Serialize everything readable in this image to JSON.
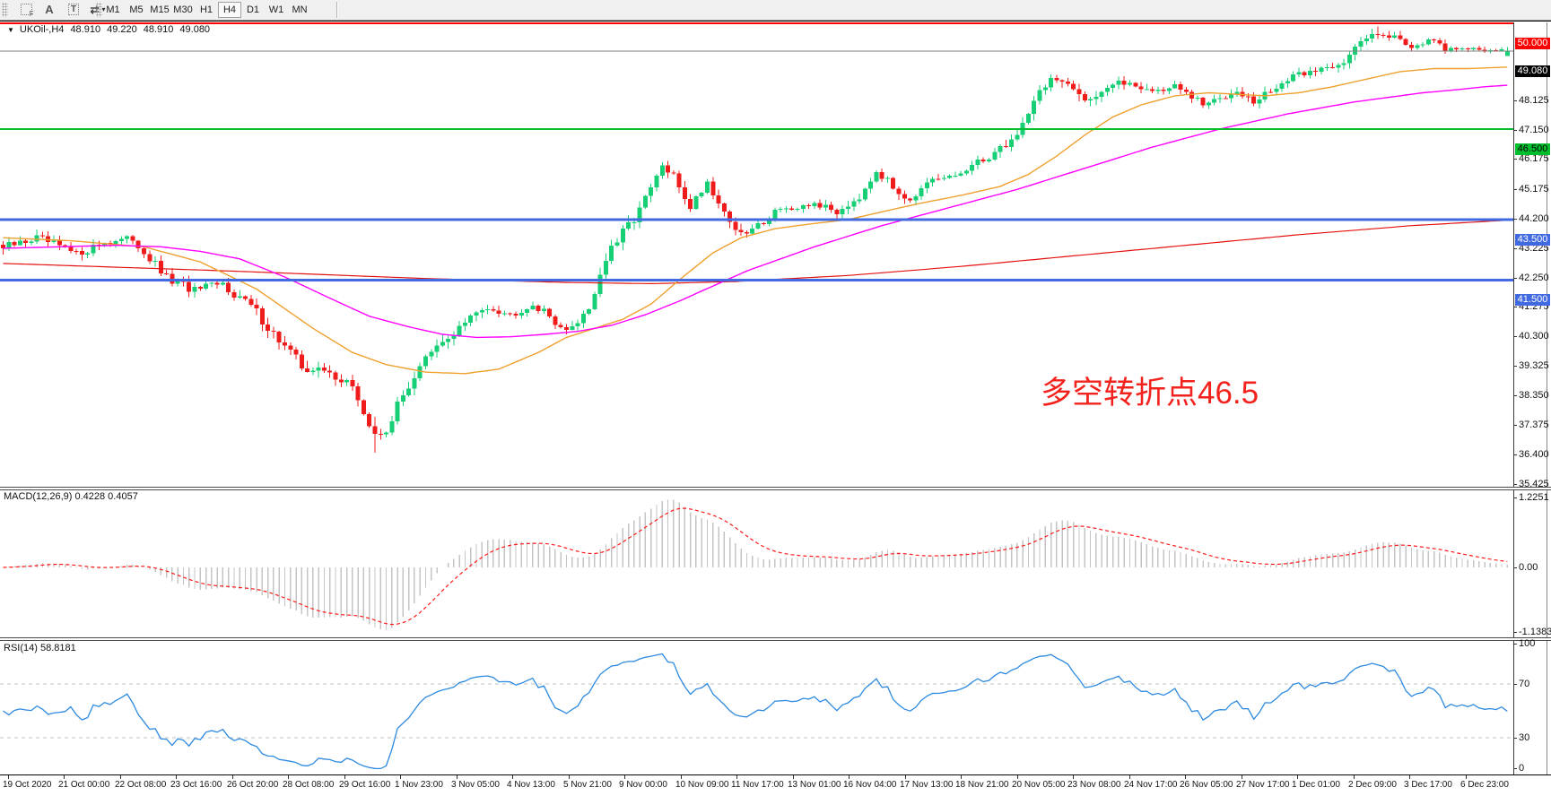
{
  "toolbar": {
    "timeframes": [
      "M1",
      "M5",
      "M15",
      "M30",
      "H1",
      "H4",
      "D1",
      "W1",
      "MN"
    ],
    "active_timeframe": "H4",
    "icon_glyphs": {
      "f": "F",
      "a": "A",
      "t": "T",
      "arrows": "⇄",
      "caret": "▾"
    }
  },
  "chart": {
    "collapse_caret": "▼",
    "title": "UKOil-,H4",
    "ohlc": {
      "open": "48.910",
      "high": "49.220",
      "low": "48.910",
      "close": "49.080"
    },
    "annotation": {
      "text": "多空转折点46.5",
      "color": "#f3221d"
    },
    "price_axis_ticks": [
      "48.125",
      "47.150",
      "46.175",
      "45.175",
      "44.200",
      "43.225",
      "42.250",
      "41.275",
      "40.300",
      "39.325",
      "38.350",
      "37.375",
      "36.400",
      "35.425"
    ],
    "hlines": [
      {
        "label": "50.000",
        "price": 50.0,
        "line_color": "#ff0000",
        "label_bg": "#ff0000",
        "label_fg": "#ffffff",
        "thickness": 2
      },
      {
        "label": "46.500",
        "price": 46.5,
        "line_color": "#00be2d",
        "label_bg": "#00be2d",
        "label_fg": "#000000",
        "thickness": 2
      },
      {
        "label": "43.500",
        "price": 43.5,
        "line_color": "#4169e1",
        "label_bg": "#4169e1",
        "label_fg": "#ffffff",
        "thickness": 3
      },
      {
        "label": "41.500",
        "price": 41.5,
        "line_color": "#4169e1",
        "label_bg": "#4169e1",
        "label_fg": "#ffffff",
        "thickness": 3
      }
    ],
    "current_price": {
      "label": "49.080",
      "price": 49.08,
      "line_color": "#808080",
      "label_bg": "#000000",
      "label_fg": "#ffffff"
    },
    "time_axis_labels": [
      "19 Oct 2020",
      "21 Oct 00:00",
      "22 Oct 08:00",
      "23 Oct 16:00",
      "26 Oct 20:00",
      "28 Oct 08:00",
      "29 Oct 16:00",
      "1 Nov 23:00",
      "3 Nov 05:00",
      "4 Nov 13:00",
      "5 Nov 21:00",
      "9 Nov 00:00",
      "10 Nov 09:00",
      "11 Nov 17:00",
      "13 Nov 01:00",
      "16 Nov 04:00",
      "17 Nov 13:00",
      "18 Nov 21:00",
      "20 Nov 05:00",
      "23 Nov 08:00",
      "24 Nov 17:00",
      "26 Nov 05:00",
      "27 Nov 17:00",
      "1 Dec 01:00",
      "2 Dec 09:00",
      "3 Dec 17:00",
      "6 Dec 23:00"
    ]
  },
  "macd": {
    "label": "MACD(12,26,9) 0.4228 0.4057",
    "ticks": [
      "1.2251",
      "0.00",
      "-1.1383"
    ],
    "tick_values": [
      1.2251,
      0,
      -1.1383
    ],
    "histogram_color": "#c4c4c4",
    "signal_color": "#ff1a1a"
  },
  "rsi": {
    "label": "RSI(14) 58.8181",
    "ticks": [
      "100",
      "70",
      "30",
      "0"
    ],
    "tick_values": [
      100,
      70,
      30,
      0
    ],
    "levels": [
      70,
      30
    ],
    "line_color": "#2d8ae0"
  },
  "colors": {
    "bull": "#17cf74",
    "bear": "#f01c1c",
    "ma_orange": "#efa02f",
    "ma_magenta": "#ff00ff",
    "ma_red": "#e31212"
  },
  "chart_data": {
    "type": "candlestick+indicators",
    "symbol": "UKOil-",
    "timeframe": "H4",
    "bars": 268,
    "ylim_main": [
      35.25,
      50.4
    ],
    "last_bar": {
      "open": 48.91,
      "high": 49.22,
      "low": 48.91,
      "close": 49.08
    },
    "low_anchor": {
      "index": 66,
      "low": 35.78
    },
    "high_anchor": {
      "index": 244,
      "high": 49.9
    },
    "price_keyframes": [
      [
        0,
        42.55,
        0.28
      ],
      [
        6,
        42.9,
        0.25
      ],
      [
        13,
        42.35,
        0.25
      ],
      [
        18,
        42.75,
        0.22
      ],
      [
        23,
        42.85,
        0.22
      ],
      [
        29,
        41.55,
        0.3
      ],
      [
        34,
        41.15,
        0.28
      ],
      [
        39,
        41.35,
        0.25
      ],
      [
        44,
        40.65,
        0.3
      ],
      [
        47,
        39.95,
        0.32
      ],
      [
        53,
        38.65,
        0.35
      ],
      [
        58,
        38.4,
        0.32
      ],
      [
        61,
        38.15,
        0.3
      ],
      [
        63,
        37.55,
        0.35
      ],
      [
        66,
        36.25,
        0.45
      ],
      [
        68,
        36.6,
        0.4
      ],
      [
        70,
        37.3,
        0.35
      ],
      [
        74,
        38.7,
        0.35
      ],
      [
        78,
        39.4,
        0.3
      ],
      [
        82,
        40.1,
        0.28
      ],
      [
        86,
        40.65,
        0.25
      ],
      [
        90,
        40.35,
        0.22
      ],
      [
        94,
        40.7,
        0.22
      ],
      [
        98,
        40.15,
        0.25
      ],
      [
        100,
        39.75,
        0.25
      ],
      [
        104,
        40.6,
        0.35
      ],
      [
        107,
        42.2,
        0.4
      ],
      [
        111,
        43.3,
        0.35
      ],
      [
        114,
        44.15,
        0.3
      ],
      [
        117,
        45.25,
        0.3
      ],
      [
        119,
        44.9,
        0.28
      ],
      [
        122,
        43.95,
        0.28
      ],
      [
        125,
        44.75,
        0.25
      ],
      [
        128,
        43.75,
        0.28
      ],
      [
        131,
        42.95,
        0.28
      ],
      [
        134,
        43.3,
        0.25
      ],
      [
        138,
        43.95,
        0.22
      ],
      [
        141,
        43.75,
        0.22
      ],
      [
        144,
        44.05,
        0.22
      ],
      [
        148,
        43.75,
        0.22
      ],
      [
        152,
        44.3,
        0.25
      ],
      [
        155,
        45.15,
        0.25
      ],
      [
        158,
        44.55,
        0.25
      ],
      [
        161,
        44.2,
        0.22
      ],
      [
        165,
        44.75,
        0.22
      ],
      [
        169,
        44.95,
        0.22
      ],
      [
        173,
        45.35,
        0.25
      ],
      [
        177,
        45.85,
        0.25
      ],
      [
        180,
        46.3,
        0.28
      ],
      [
        183,
        47.5,
        0.32
      ],
      [
        186,
        48.2,
        0.3
      ],
      [
        189,
        47.85,
        0.28
      ],
      [
        193,
        47.55,
        0.4
      ],
      [
        196,
        47.9,
        0.25
      ],
      [
        200,
        48.05,
        0.22
      ],
      [
        204,
        47.75,
        0.22
      ],
      [
        208,
        47.9,
        0.22
      ],
      [
        213,
        47.3,
        0.22
      ],
      [
        216,
        47.5,
        0.2
      ],
      [
        219,
        47.85,
        0.22
      ],
      [
        222,
        47.35,
        0.25
      ],
      [
        226,
        47.9,
        0.22
      ],
      [
        230,
        48.3,
        0.2
      ],
      [
        234,
        48.5,
        0.2
      ],
      [
        238,
        48.75,
        0.22
      ],
      [
        241,
        49.35,
        0.25
      ],
      [
        244,
        49.75,
        0.25
      ],
      [
        247,
        49.55,
        0.22
      ],
      [
        250,
        49.25,
        0.2
      ],
      [
        253,
        49.45,
        0.18
      ],
      [
        256,
        49.15,
        0.15
      ],
      [
        259,
        49.2,
        0.12
      ],
      [
        262,
        49.1,
        0.12
      ],
      [
        265,
        49.15,
        0.1
      ],
      [
        267,
        49.08,
        0.06
      ]
    ],
    "ma_orange_keyframes": [
      [
        0,
        42.9
      ],
      [
        12,
        42.8
      ],
      [
        25,
        42.6
      ],
      [
        35,
        42.1
      ],
      [
        45,
        41.2
      ],
      [
        55,
        39.9
      ],
      [
        62,
        39.1
      ],
      [
        68,
        38.7
      ],
      [
        75,
        38.45
      ],
      [
        82,
        38.4
      ],
      [
        88,
        38.55
      ],
      [
        95,
        39.1
      ],
      [
        100,
        39.6
      ],
      [
        105,
        39.9
      ],
      [
        110,
        40.2
      ],
      [
        115,
        40.7
      ],
      [
        120,
        41.5
      ],
      [
        126,
        42.4
      ],
      [
        131,
        42.9
      ],
      [
        137,
        43.2
      ],
      [
        143,
        43.35
      ],
      [
        150,
        43.5
      ],
      [
        157,
        43.8
      ],
      [
        163,
        44.05
      ],
      [
        170,
        44.3
      ],
      [
        177,
        44.6
      ],
      [
        182,
        45.0
      ],
      [
        187,
        45.6
      ],
      [
        192,
        46.3
      ],
      [
        197,
        46.9
      ],
      [
        202,
        47.3
      ],
      [
        208,
        47.6
      ],
      [
        214,
        47.7
      ],
      [
        219,
        47.65
      ],
      [
        224,
        47.6
      ],
      [
        230,
        47.7
      ],
      [
        236,
        47.9
      ],
      [
        242,
        48.15
      ],
      [
        248,
        48.4
      ],
      [
        254,
        48.5
      ],
      [
        260,
        48.5
      ],
      [
        267,
        48.55
      ]
    ],
    "ma_magenta_keyframes": [
      [
        0,
        42.55
      ],
      [
        10,
        42.6
      ],
      [
        20,
        42.65
      ],
      [
        28,
        42.6
      ],
      [
        35,
        42.45
      ],
      [
        42,
        42.2
      ],
      [
        50,
        41.6
      ],
      [
        58,
        40.9
      ],
      [
        65,
        40.3
      ],
      [
        72,
        39.95
      ],
      [
        78,
        39.7
      ],
      [
        84,
        39.6
      ],
      [
        90,
        39.62
      ],
      [
        96,
        39.7
      ],
      [
        102,
        39.8
      ],
      [
        108,
        40.0
      ],
      [
        114,
        40.35
      ],
      [
        120,
        40.8
      ],
      [
        126,
        41.3
      ],
      [
        132,
        41.8
      ],
      [
        138,
        42.2
      ],
      [
        144,
        42.6
      ],
      [
        150,
        42.95
      ],
      [
        156,
        43.3
      ],
      [
        162,
        43.6
      ],
      [
        168,
        43.9
      ],
      [
        174,
        44.2
      ],
      [
        180,
        44.5
      ],
      [
        186,
        44.85
      ],
      [
        192,
        45.2
      ],
      [
        198,
        45.55
      ],
      [
        204,
        45.9
      ],
      [
        210,
        46.2
      ],
      [
        216,
        46.5
      ],
      [
        222,
        46.75
      ],
      [
        228,
        47.0
      ],
      [
        234,
        47.2
      ],
      [
        240,
        47.4
      ],
      [
        246,
        47.55
      ],
      [
        252,
        47.7
      ],
      [
        258,
        47.8
      ],
      [
        263,
        47.9
      ],
      [
        267,
        47.95
      ]
    ],
    "ma_red_keyframes": [
      [
        0,
        42.05
      ],
      [
        40,
        41.8
      ],
      [
        75,
        41.55
      ],
      [
        100,
        41.42
      ],
      [
        115,
        41.38
      ],
      [
        130,
        41.45
      ],
      [
        150,
        41.65
      ],
      [
        170,
        41.95
      ],
      [
        190,
        42.3
      ],
      [
        210,
        42.65
      ],
      [
        230,
        43.0
      ],
      [
        250,
        43.3
      ],
      [
        267,
        43.48
      ]
    ],
    "macd_settings": {
      "fast": 12,
      "slow": 26,
      "signal": 9,
      "current_macd": 0.4228,
      "current_signal": 0.4057,
      "range": [
        -1.1383,
        1.2251
      ]
    },
    "rsi_settings": {
      "period": 14,
      "current": 58.8181,
      "levels": [
        30,
        70
      ],
      "range": [
        0,
        100
      ]
    }
  }
}
